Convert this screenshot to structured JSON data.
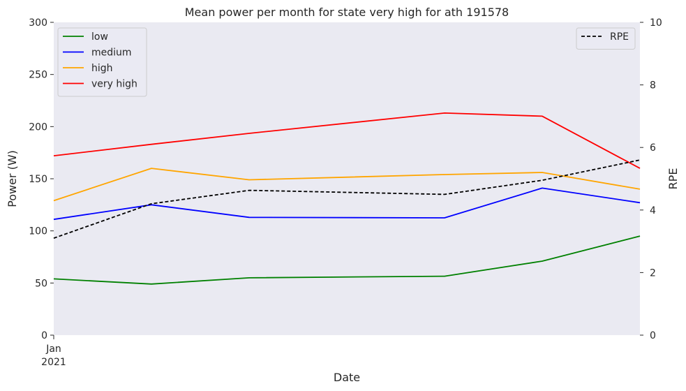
{
  "chart_data": {
    "type": "line",
    "title": "Mean power per month for state very high for ath 191578",
    "xlabel": "Date",
    "ylabel": "Power (W)",
    "y2label": "RPE",
    "x": [
      "2021-01",
      "2021-02",
      "2021-03",
      "2021-04",
      "2021-05",
      "2021-06",
      "2021-07"
    ],
    "x_tick_labels": [
      {
        "x": "2021-01",
        "line1": "Jan",
        "line2": "2021"
      }
    ],
    "ylim": [
      0,
      300
    ],
    "yticks": [
      0,
      50,
      100,
      150,
      200,
      250,
      300
    ],
    "y2lim": [
      0,
      10
    ],
    "y2ticks": [
      0,
      2,
      4,
      6,
      8,
      10
    ],
    "grid": false,
    "legend_left_placement": "upper-left",
    "legend_right_placement": "upper-right",
    "series": [
      {
        "name": "low",
        "color": "#008000",
        "axis": "left",
        "points": [
          [
            "2021-01",
            54
          ],
          [
            "2021-02",
            49
          ],
          [
            "2021-03",
            55
          ],
          [
            "2021-05",
            56.5
          ],
          [
            "2021-06",
            71
          ],
          [
            "2021-07",
            95
          ]
        ]
      },
      {
        "name": "medium",
        "color": "#0000ff",
        "axis": "left",
        "points": [
          [
            "2021-01",
            111
          ],
          [
            "2021-02",
            125
          ],
          [
            "2021-03",
            113
          ],
          [
            "2021-05",
            112.5
          ],
          [
            "2021-06",
            141
          ],
          [
            "2021-07",
            127
          ]
        ]
      },
      {
        "name": "high",
        "color": "#ffa500",
        "axis": "left",
        "points": [
          [
            "2021-01",
            129
          ],
          [
            "2021-02",
            160
          ],
          [
            "2021-03",
            149
          ],
          [
            "2021-05",
            154
          ],
          [
            "2021-06",
            156
          ],
          [
            "2021-07",
            140
          ]
        ]
      },
      {
        "name": "very high",
        "color": "#ff0000",
        "axis": "left",
        "points": [
          [
            "2021-01",
            172
          ],
          [
            "2021-02",
            183
          ],
          [
            "2021-03",
            193.5
          ],
          [
            "2021-05",
            213
          ],
          [
            "2021-06",
            210
          ],
          [
            "2021-07",
            160
          ]
        ]
      },
      {
        "name": "RPE",
        "color": "#000000",
        "axis": "right",
        "dashed": true,
        "points": [
          [
            "2021-01",
            3.1
          ],
          [
            "2021-02",
            4.2
          ],
          [
            "2021-03",
            4.63
          ],
          [
            "2021-05",
            4.5
          ],
          [
            "2021-06",
            4.95
          ],
          [
            "2021-07",
            5.6
          ]
        ]
      }
    ]
  }
}
